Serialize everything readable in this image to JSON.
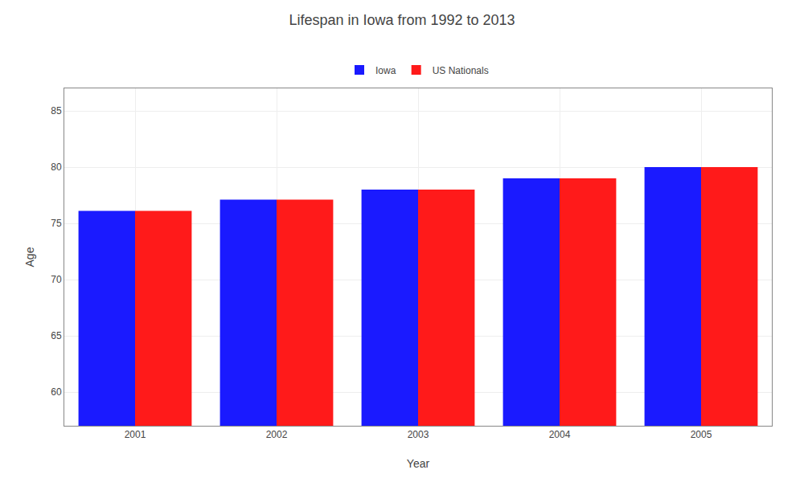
{
  "chart_data": {
    "type": "bar",
    "title": "Lifespan in Iowa from 1992 to 2013",
    "x_label": "Year",
    "y_label": "Age",
    "categories": [
      "2001",
      "2002",
      "2003",
      "2004",
      "2005"
    ],
    "series": [
      {
        "name": "Iowa",
        "color": "#1a1aff",
        "values": [
          76.1,
          77.1,
          78.0,
          79.0,
          80.0
        ]
      },
      {
        "name": "US Nationals",
        "color": "#ff1a1a",
        "values": [
          76.1,
          77.1,
          78.0,
          79.0,
          80.0
        ]
      }
    ],
    "ylim": [
      57,
      87
    ],
    "yticks": [
      60,
      65,
      70,
      75,
      80,
      85
    ],
    "grid": true,
    "legend": "upper center"
  }
}
